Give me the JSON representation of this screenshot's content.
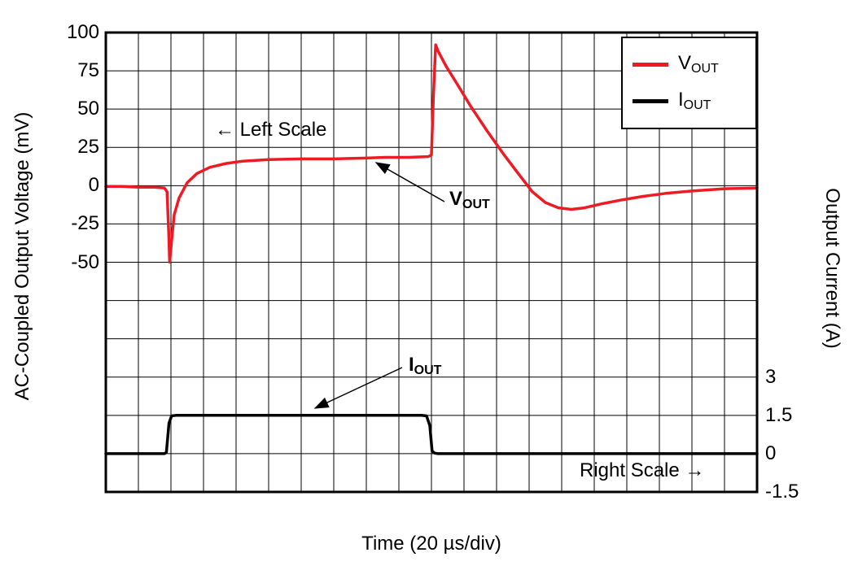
{
  "annotations": {
    "left_scale": {
      "arrow": "←",
      "label": "Left Scale"
    },
    "right_scale": {
      "label": "Right Scale",
      "arrow": "→"
    },
    "vout": {
      "main": "V",
      "sub": "OUT"
    },
    "iout": {
      "main": "I",
      "sub": "OUT"
    }
  },
  "legend": {
    "position": "top-right",
    "items": [
      {
        "main": "V",
        "sub": "OUT",
        "color": "#ed1b24"
      },
      {
        "main": "I",
        "sub": "OUT",
        "color": "#000000"
      }
    ]
  },
  "chart_data": {
    "type": "line",
    "title": "",
    "grid": true,
    "rows": 12,
    "x_axis": {
      "label": "Time (20 µs/div)",
      "divisions": 20,
      "units_per_division": "20 µs"
    },
    "left_axis": {
      "label": "AC-Coupled Output Voltage (mV)",
      "ticks": [
        100,
        75,
        50,
        25,
        0,
        -25,
        -50
      ],
      "units_per_div": 25,
      "top_value": 100
    },
    "right_axis": {
      "label": "Output Current (A)",
      "ticks": [
        3,
        1.5,
        0,
        -1.5
      ],
      "units_per_div": 1.5,
      "bottom_value": -1.5
    },
    "series": [
      {
        "name": "VOUT",
        "axis": "left",
        "unit": "mV",
        "color": "#ed1b24",
        "points": [
          [
            0,
            -0.5
          ],
          [
            0.5,
            -0.5
          ],
          [
            1.0,
            -1
          ],
          [
            1.5,
            -1
          ],
          [
            1.8,
            -1.5
          ],
          [
            1.88,
            -4
          ],
          [
            1.93,
            -30
          ],
          [
            1.96,
            -50
          ],
          [
            2.02,
            -36
          ],
          [
            2.1,
            -19
          ],
          [
            2.25,
            -8
          ],
          [
            2.5,
            2
          ],
          [
            2.8,
            8
          ],
          [
            3.2,
            12
          ],
          [
            3.7,
            14.5
          ],
          [
            4.2,
            16
          ],
          [
            5,
            17
          ],
          [
            6,
            17.5
          ],
          [
            7,
            17.5
          ],
          [
            8,
            18
          ],
          [
            8.6,
            18.5
          ],
          [
            9.3,
            18.5
          ],
          [
            9.9,
            19
          ],
          [
            10.0,
            20
          ],
          [
            10.06,
            58
          ],
          [
            10.13,
            92
          ],
          [
            10.2,
            88
          ],
          [
            10.45,
            78
          ],
          [
            10.8,
            66
          ],
          [
            11.2,
            52
          ],
          [
            11.7,
            36
          ],
          [
            12.2,
            21
          ],
          [
            12.7,
            7
          ],
          [
            13.1,
            -4
          ],
          [
            13.5,
            -11
          ],
          [
            13.9,
            -14.5
          ],
          [
            14.3,
            -15.5
          ],
          [
            14.7,
            -14.5
          ],
          [
            15.2,
            -12
          ],
          [
            15.8,
            -9.5
          ],
          [
            16.5,
            -7
          ],
          [
            17.2,
            -5
          ],
          [
            18,
            -3.5
          ],
          [
            19,
            -2
          ],
          [
            20,
            -1.5
          ]
        ]
      },
      {
        "name": "IOUT",
        "axis": "right",
        "unit": "A",
        "color": "#000000",
        "points": [
          [
            0,
            0
          ],
          [
            1.8,
            0
          ],
          [
            1.86,
            0.05
          ],
          [
            1.94,
            1.2
          ],
          [
            2.02,
            1.48
          ],
          [
            2.15,
            1.5
          ],
          [
            5,
            1.5
          ],
          [
            8,
            1.5
          ],
          [
            9.7,
            1.5
          ],
          [
            9.85,
            1.48
          ],
          [
            9.95,
            1.1
          ],
          [
            10.02,
            0.1
          ],
          [
            10.1,
            0.02
          ],
          [
            10.2,
            0
          ],
          [
            14,
            0
          ],
          [
            20,
            0
          ]
        ]
      }
    ]
  }
}
